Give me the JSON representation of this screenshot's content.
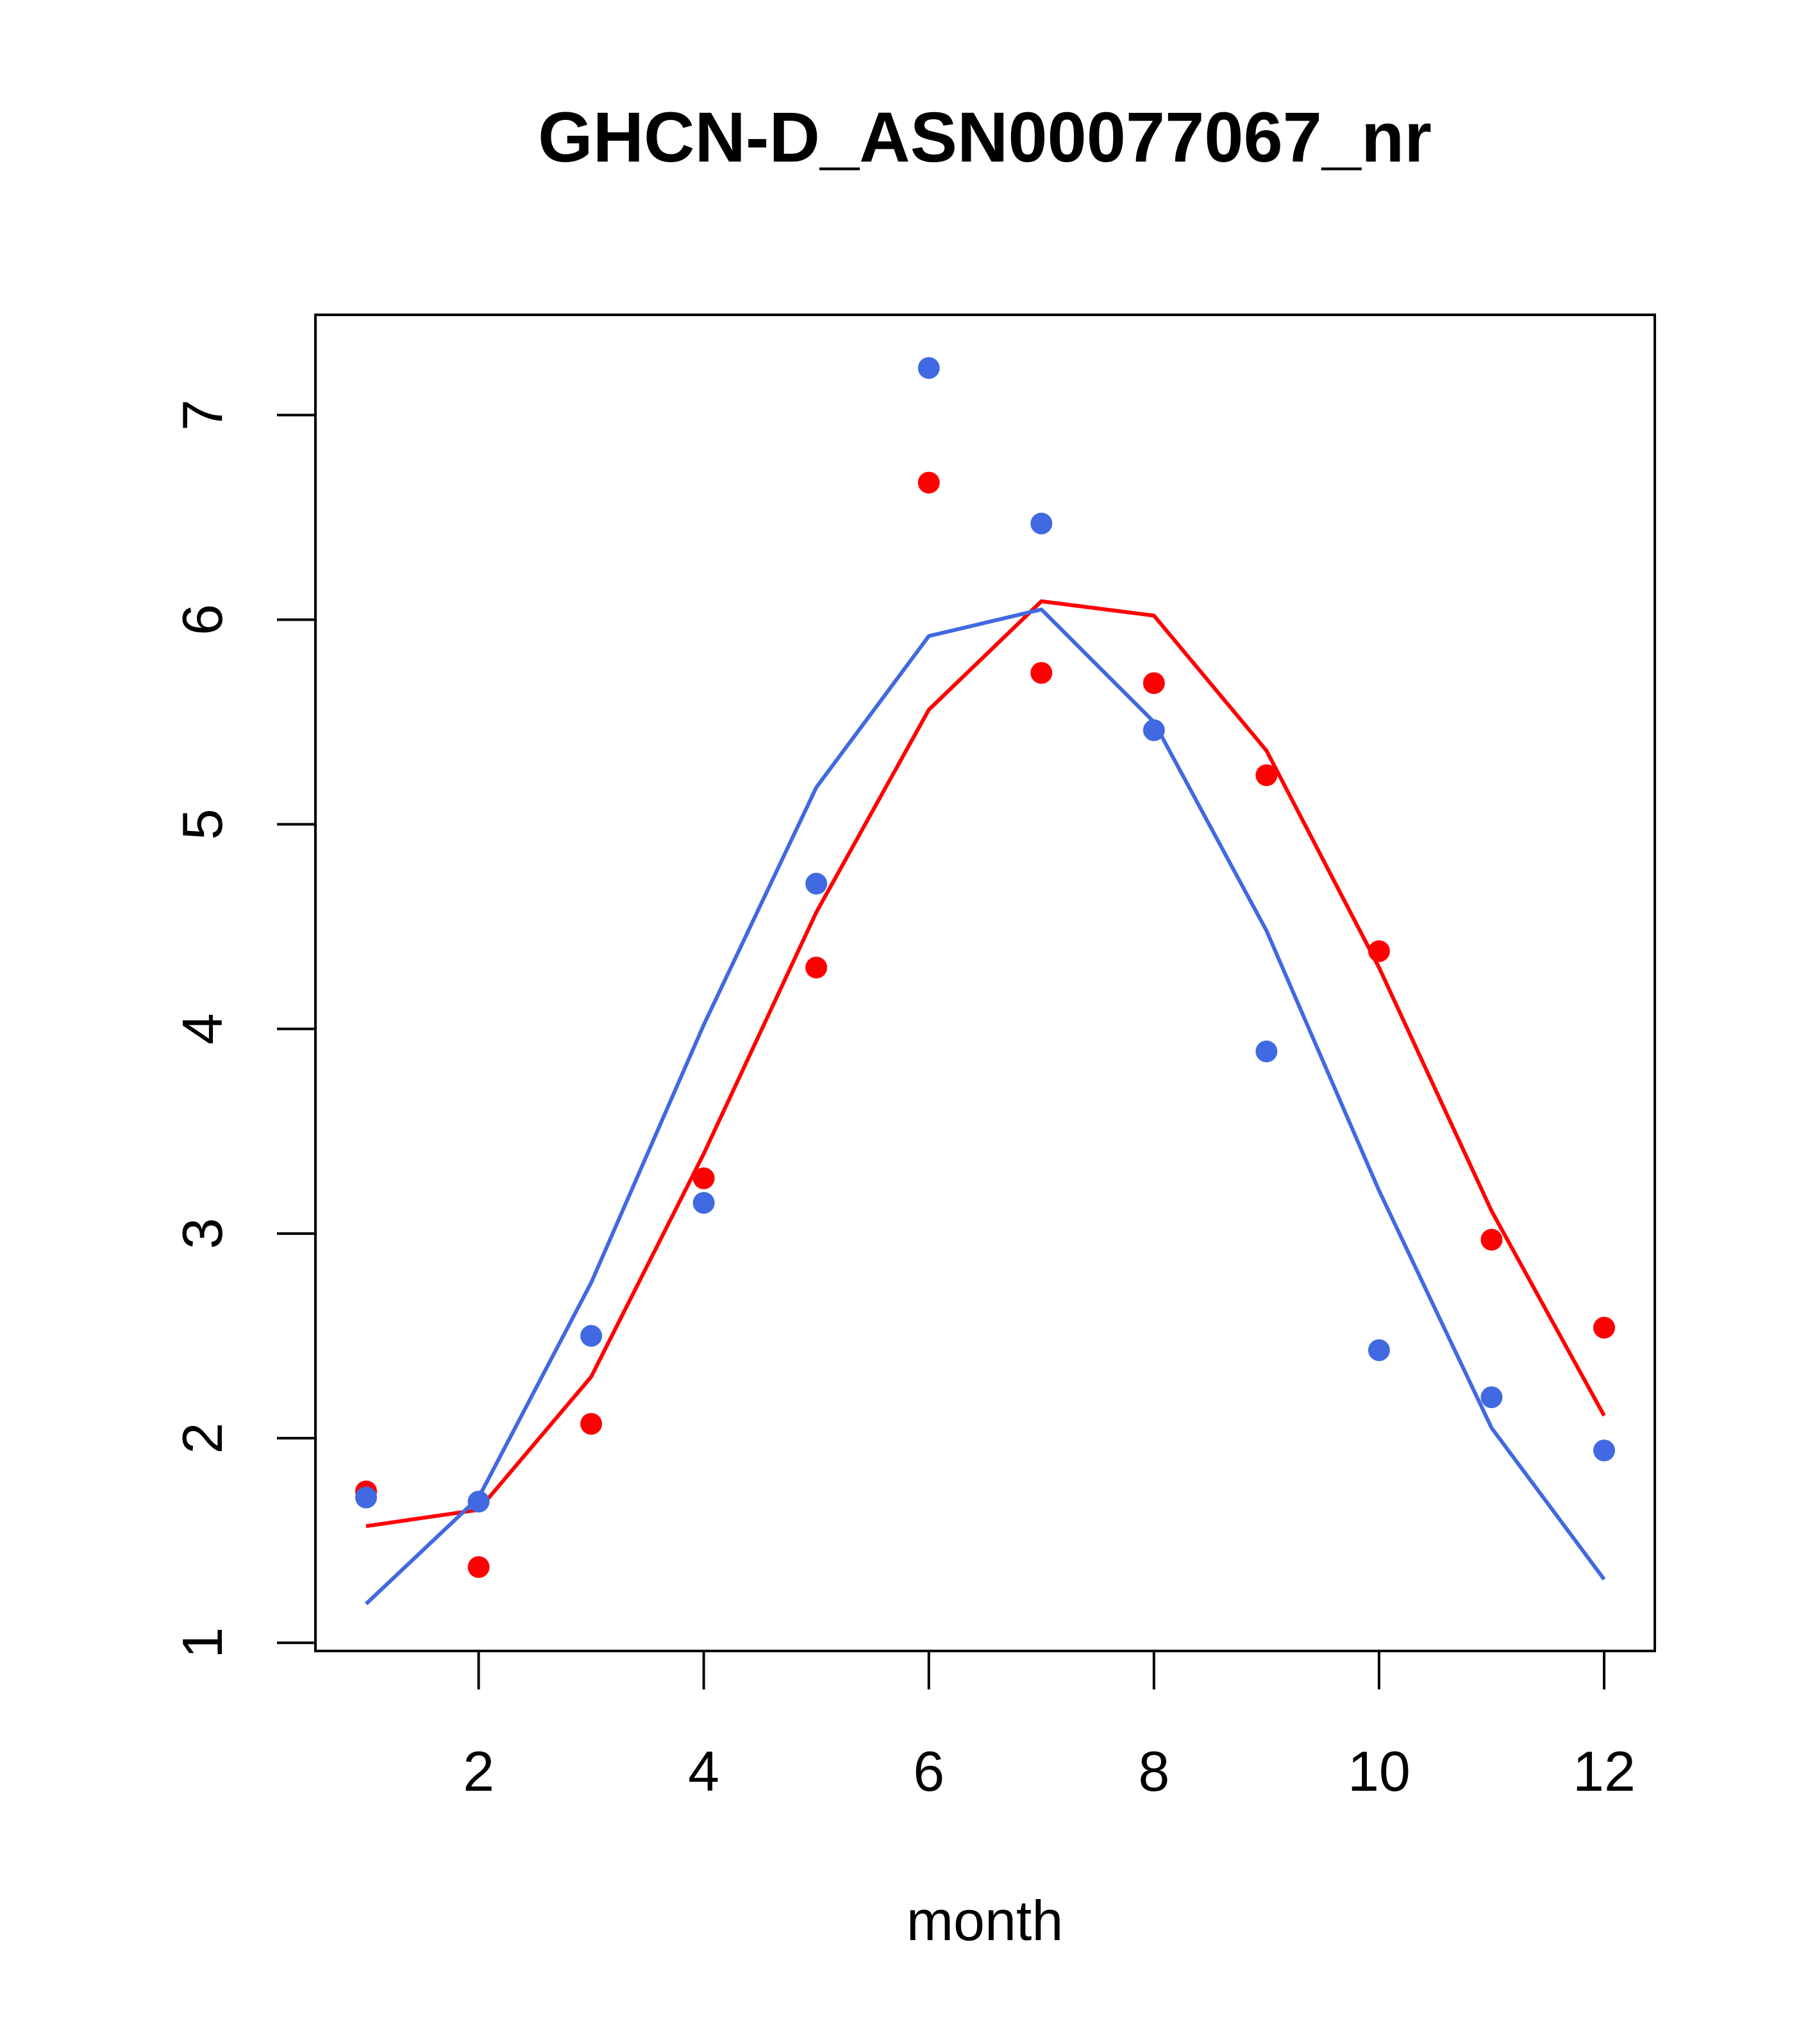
{
  "chart_data": {
    "type": "scatter",
    "title": "GHCN-D_ASN00077067_nr",
    "xlabel": "month",
    "ylabel": "",
    "xlim": [
      0.55,
      12.45
    ],
    "ylim": [
      0.96,
      7.49
    ],
    "x_ticks": [
      2,
      4,
      6,
      8,
      10,
      12
    ],
    "y_ticks": [
      1,
      2,
      3,
      4,
      5,
      6,
      7
    ],
    "grid": false,
    "legend": "none",
    "x": [
      1,
      2,
      3,
      4,
      5,
      6,
      7,
      8,
      9,
      10,
      11,
      12
    ],
    "series": [
      {
        "color": "#ff0000",
        "points": [
          1.74,
          1.37,
          2.07,
          3.27,
          4.3,
          6.67,
          5.74,
          5.69,
          5.24,
          4.38,
          2.97,
          2.54
        ],
        "line": [
          1.57,
          1.65,
          2.3,
          3.39,
          4.57,
          5.56,
          6.09,
          6.02,
          5.36,
          4.3,
          3.11,
          2.11
        ]
      },
      {
        "color": "#4169e1",
        "points": [
          1.71,
          1.69,
          2.5,
          3.15,
          4.71,
          7.23,
          6.47,
          5.46,
          3.89,
          2.43,
          2.2,
          1.94
        ],
        "line": [
          1.19,
          1.71,
          2.76,
          4.02,
          5.18,
          5.92,
          6.05,
          5.5,
          4.48,
          3.21,
          2.05,
          1.31
        ]
      }
    ]
  }
}
